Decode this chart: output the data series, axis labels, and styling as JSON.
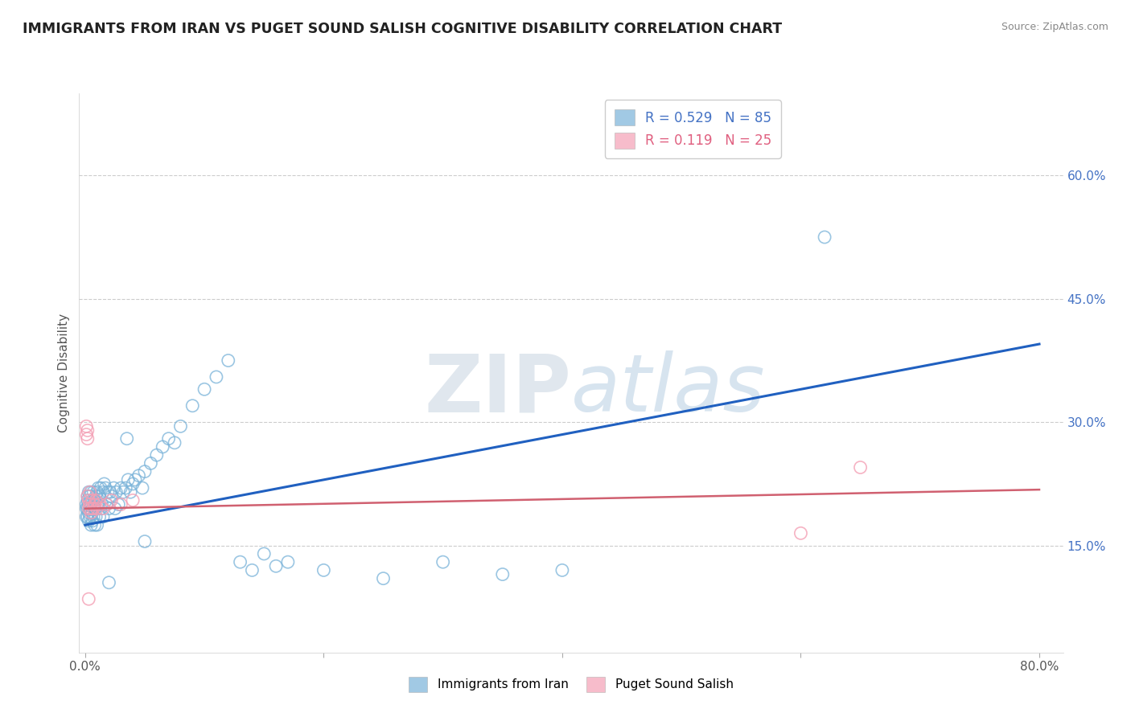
{
  "title": "IMMIGRANTS FROM IRAN VS PUGET SOUND SALISH COGNITIVE DISABILITY CORRELATION CHART",
  "source": "Source: ZipAtlas.com",
  "ylabel": "Cognitive Disability",
  "legend_labels": [
    "Immigrants from Iran",
    "Puget Sound Salish"
  ],
  "r_blue": 0.529,
  "n_blue": 85,
  "r_pink": 0.119,
  "n_pink": 25,
  "y_ticks_right": [
    0.15,
    0.3,
    0.45,
    0.6
  ],
  "y_tick_labels_right": [
    "15.0%",
    "30.0%",
    "45.0%",
    "60.0%"
  ],
  "xlim": [
    -0.005,
    0.82
  ],
  "ylim": [
    0.02,
    0.7
  ],
  "watermark_zip": "ZIP",
  "watermark_atlas": "atlas",
  "background_color": "#ffffff",
  "blue_scatter_color": "#7ab3d9",
  "pink_scatter_color": "#f4a0b5",
  "blue_line_color": "#2060c0",
  "pink_line_color": "#d06070",
  "grid_color": "#cccccc",
  "blue_points_x": [
    0.001,
    0.001,
    0.001,
    0.002,
    0.002,
    0.002,
    0.002,
    0.003,
    0.003,
    0.003,
    0.003,
    0.004,
    0.004,
    0.004,
    0.005,
    0.005,
    0.005,
    0.006,
    0.006,
    0.006,
    0.007,
    0.007,
    0.007,
    0.008,
    0.008,
    0.008,
    0.009,
    0.009,
    0.01,
    0.01,
    0.01,
    0.011,
    0.011,
    0.012,
    0.012,
    0.013,
    0.013,
    0.014,
    0.015,
    0.015,
    0.016,
    0.017,
    0.018,
    0.019,
    0.02,
    0.021,
    0.022,
    0.024,
    0.025,
    0.026,
    0.028,
    0.03,
    0.032,
    0.034,
    0.036,
    0.038,
    0.04,
    0.042,
    0.045,
    0.048,
    0.05,
    0.055,
    0.06,
    0.065,
    0.07,
    0.075,
    0.08,
    0.09,
    0.1,
    0.11,
    0.12,
    0.13,
    0.14,
    0.15,
    0.16,
    0.17,
    0.2,
    0.25,
    0.3,
    0.35,
    0.4,
    0.05,
    0.02,
    0.62,
    0.035
  ],
  "blue_points_y": [
    0.195,
    0.185,
    0.2,
    0.21,
    0.195,
    0.205,
    0.185,
    0.215,
    0.19,
    0.2,
    0.18,
    0.21,
    0.195,
    0.185,
    0.2,
    0.175,
    0.215,
    0.19,
    0.205,
    0.18,
    0.2,
    0.185,
    0.215,
    0.195,
    0.205,
    0.175,
    0.21,
    0.185,
    0.2,
    0.215,
    0.175,
    0.2,
    0.22,
    0.185,
    0.21,
    0.195,
    0.22,
    0.2,
    0.215,
    0.185,
    0.225,
    0.22,
    0.2,
    0.215,
    0.195,
    0.215,
    0.21,
    0.22,
    0.195,
    0.215,
    0.2,
    0.22,
    0.215,
    0.22,
    0.23,
    0.215,
    0.225,
    0.23,
    0.235,
    0.22,
    0.24,
    0.25,
    0.26,
    0.27,
    0.28,
    0.275,
    0.295,
    0.32,
    0.34,
    0.355,
    0.375,
    0.13,
    0.12,
    0.14,
    0.125,
    0.13,
    0.12,
    0.11,
    0.13,
    0.115,
    0.12,
    0.155,
    0.105,
    0.525,
    0.28
  ],
  "pink_points_x": [
    0.001,
    0.001,
    0.002,
    0.002,
    0.002,
    0.003,
    0.003,
    0.004,
    0.004,
    0.005,
    0.005,
    0.006,
    0.007,
    0.008,
    0.009,
    0.01,
    0.012,
    0.015,
    0.018,
    0.022,
    0.03,
    0.04,
    0.6,
    0.65,
    0.003
  ],
  "pink_points_y": [
    0.285,
    0.295,
    0.28,
    0.21,
    0.29,
    0.195,
    0.205,
    0.2,
    0.215,
    0.19,
    0.195,
    0.205,
    0.195,
    0.2,
    0.205,
    0.195,
    0.2,
    0.195,
    0.2,
    0.205,
    0.2,
    0.205,
    0.165,
    0.245,
    0.085
  ],
  "blue_trendline_x": [
    0.0,
    0.8
  ],
  "blue_trendline_y": [
    0.175,
    0.395
  ],
  "pink_trendline_x": [
    0.0,
    0.8
  ],
  "pink_trendline_y": [
    0.195,
    0.218
  ]
}
